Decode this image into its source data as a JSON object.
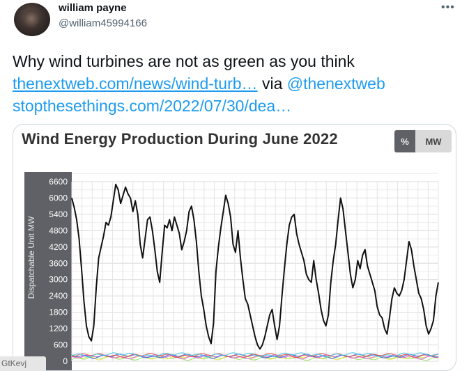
{
  "author": {
    "name": "william payne",
    "handle": "@william45994166"
  },
  "tweet": {
    "text_line1": "Why wind turbines are not as green as you think",
    "link1": "thenextweb.com/news/wind-turb…",
    "via_text": " via ",
    "mention": "@thenextweb",
    "link2": "stopthesethings.com/2022/07/30/dea…"
  },
  "card": {
    "toggle_percent": "%",
    "toggle_mw": "MW"
  },
  "watermark": "GtKevj",
  "more_icon": "more-horizontal-icon",
  "colors": {
    "link": "#1d9bf0",
    "text": "#0f1419",
    "muted": "#536471",
    "axis_band": "#5f6166"
  },
  "chart_data": {
    "type": "line",
    "title": "Wind Energy Production During June 2022",
    "ylabel": "Dispatchable Unit MW",
    "xlabel": "",
    "ylim": [
      0,
      6600
    ],
    "yticks": [
      0,
      600,
      1200,
      1800,
      2400,
      3000,
      3600,
      4200,
      4800,
      5400,
      6000,
      6600
    ],
    "grid": true,
    "x": [
      0,
      1,
      2,
      3,
      4,
      5,
      6,
      7,
      8,
      9,
      10,
      11,
      12,
      13,
      14,
      15,
      16,
      17,
      18,
      19,
      20,
      21,
      22,
      23,
      24,
      25,
      26,
      27,
      28,
      29,
      30,
      31,
      32,
      33,
      34,
      35,
      36,
      37,
      38,
      39,
      40,
      41,
      42,
      43,
      44,
      45,
      46,
      47,
      48,
      49,
      50,
      51,
      52,
      53,
      54,
      55,
      56,
      57,
      58,
      59,
      60,
      61,
      62,
      63,
      64,
      65,
      66,
      67,
      68,
      69,
      70,
      71,
      72,
      73,
      74,
      75,
      76,
      77,
      78,
      79,
      80,
      81,
      82,
      83,
      84,
      85,
      86,
      87,
      88,
      89,
      90,
      91,
      92,
      93,
      94,
      95,
      96,
      97,
      98,
      99,
      100,
      101,
      102,
      103,
      104,
      105,
      106,
      107,
      108,
      109,
      110,
      111,
      112,
      113,
      114,
      115,
      116,
      117,
      118,
      119,
      120,
      121,
      122,
      123,
      124,
      125,
      126,
      127,
      128,
      129,
      130,
      131,
      132,
      133,
      134,
      135,
      136,
      137,
      138,
      139,
      140,
      141,
      142,
      143,
      144,
      145,
      146,
      147,
      148,
      149,
      150
    ],
    "series": [
      {
        "values": [
          6000,
          5650,
          5200,
          4500,
          3400,
          2200,
          1300,
          900,
          750,
          1300,
          2700,
          3800,
          4200,
          4600,
          5100,
          5000,
          5300,
          5900,
          6500,
          6300,
          5800,
          6100,
          6400,
          6150,
          6000,
          5500,
          5900,
          5400,
          4300,
          3800,
          4500,
          5200,
          5300,
          4800,
          4100,
          3300,
          2900,
          4000,
          5000,
          4900,
          5200,
          4800,
          5300,
          5000,
          4700,
          4100,
          4400,
          4800,
          5500,
          5700,
          5200,
          4400,
          3300,
          2400,
          1900,
          1300,
          900,
          650,
          1400,
          3300,
          4200,
          4900,
          5500,
          6100,
          5800,
          5300,
          4300,
          4000,
          4800,
          3800,
          3000,
          2300,
          2100,
          1700,
          1300,
          900,
          600,
          450,
          600,
          900,
          1300,
          1700,
          1900,
          1300,
          800,
          1300,
          2400,
          3400,
          4300,
          5000,
          5300,
          5400,
          4700,
          4300,
          4000,
          3700,
          3200,
          3000,
          2900,
          3700,
          3000,
          2500,
          1900,
          1500,
          1300,
          1700,
          2900,
          3700,
          4300,
          5200,
          6000,
          5600,
          4800,
          4000,
          3200,
          2700,
          3000,
          3700,
          3400,
          3900,
          4100,
          3500,
          3200,
          2900,
          2600,
          2000,
          1700,
          1600,
          1200,
          1000,
          1600,
          2300,
          2700,
          2500,
          2400,
          2600,
          3000,
          3700,
          4400,
          4100,
          3500,
          3000,
          2500,
          2300,
          1900,
          1300,
          1000,
          1200,
          1500,
          2400,
          2900
        ]
      }
    ]
  }
}
